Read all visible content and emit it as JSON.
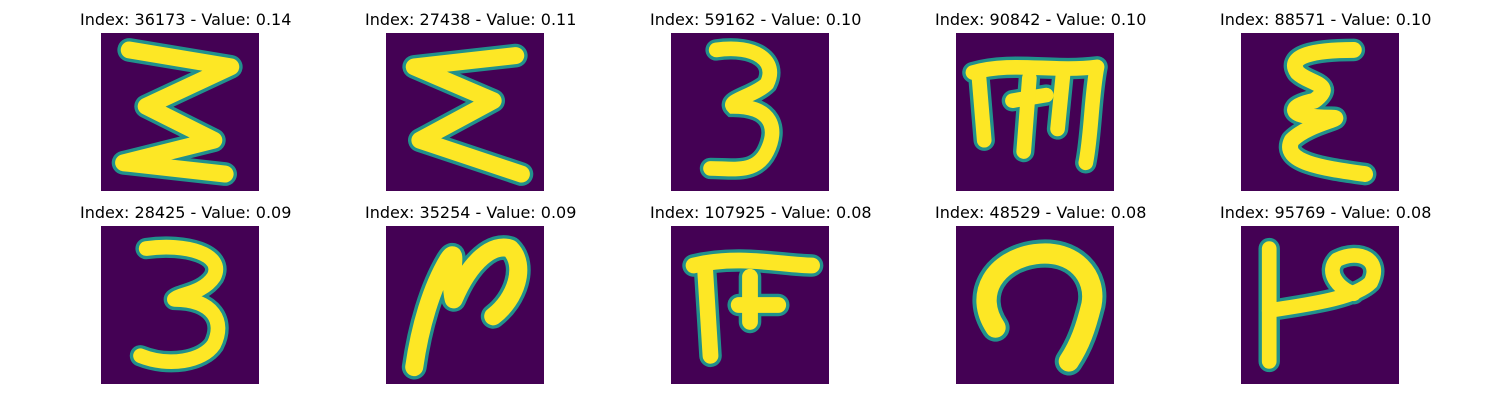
{
  "colors": {
    "background": "#440154",
    "stroke": "#fde725",
    "edge": "#21918c"
  },
  "panels": [
    {
      "title": "Index: 36173 - Value: 0.14",
      "glyph": "sigma-like"
    },
    {
      "title": "Index: 27438 - Value: 0.11",
      "glyph": "sigma-like"
    },
    {
      "title": "Index: 59162 - Value: 0.10",
      "glyph": "three"
    },
    {
      "title": "Index: 90842 - Value: 0.10",
      "glyph": "m-with-bar"
    },
    {
      "title": "Index: 88571 - Value: 0.10",
      "glyph": "epsilon-like"
    },
    {
      "title": "Index: 28425 - Value: 0.09",
      "glyph": "three"
    },
    {
      "title": "Index: 35254 - Value: 0.09",
      "glyph": "n-loop"
    },
    {
      "title": "Index: 107925 - Value: 0.08",
      "glyph": "pi-like"
    },
    {
      "title": "Index: 48529 - Value: 0.08",
      "glyph": "hook"
    },
    {
      "title": "Index: 95769 - Value: 0.08",
      "glyph": "p-like"
    }
  ]
}
